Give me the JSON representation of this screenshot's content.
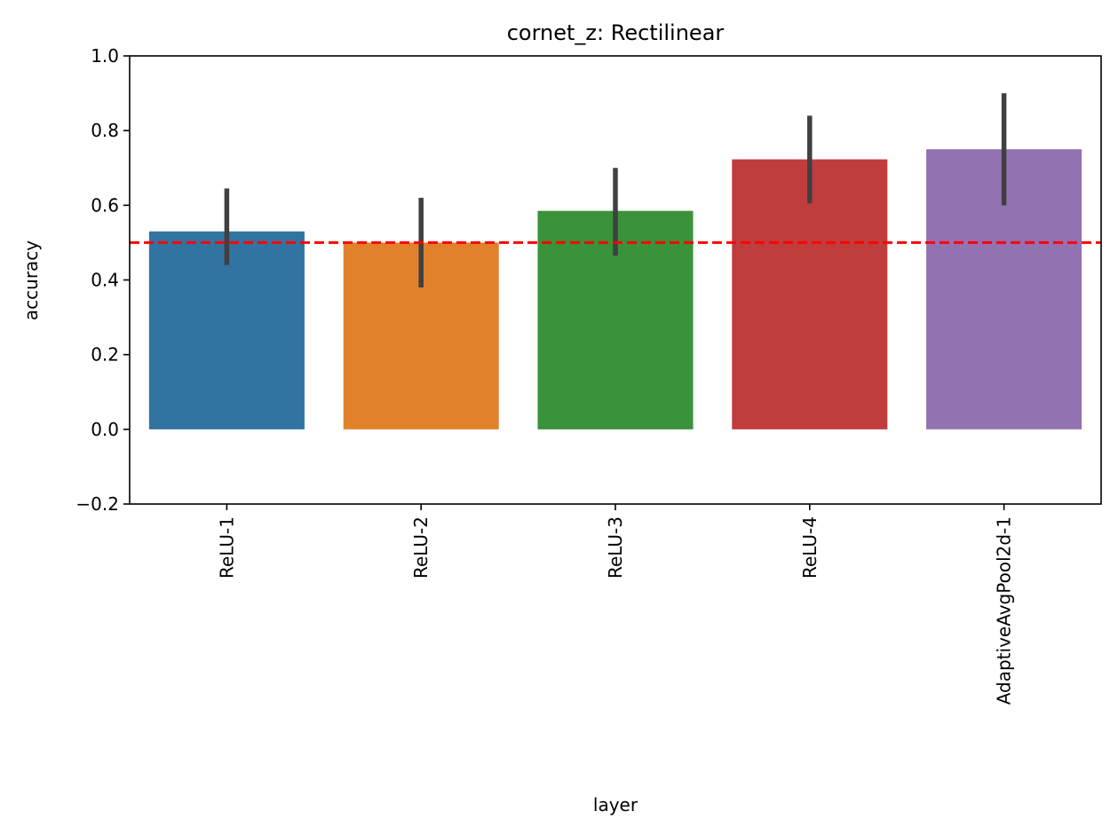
{
  "chart_data": {
    "type": "bar",
    "title": "cornet_z: Rectilinear",
    "xlabel": "layer",
    "ylabel": "accuracy",
    "ylim": [
      -0.2,
      1.0
    ],
    "yticks": [
      -0.2,
      0.0,
      0.2,
      0.4,
      0.6,
      0.8,
      1.0
    ],
    "ytick_labels": [
      "−0.2",
      "0.0",
      "0.2",
      "0.4",
      "0.6",
      "0.8",
      "1.0"
    ],
    "categories": [
      "ReLU-1",
      "ReLU-2",
      "ReLU-3",
      "ReLU-4",
      "AdaptiveAvgPool2d-1"
    ],
    "values": [
      0.53,
      0.5,
      0.585,
      0.723,
      0.75
    ],
    "error_low": [
      0.44,
      0.38,
      0.465,
      0.605,
      0.6
    ],
    "error_high": [
      0.645,
      0.62,
      0.7,
      0.84,
      0.9
    ],
    "colors": [
      "#3274a1",
      "#e1812c",
      "#3a923a",
      "#c03d3e",
      "#9372b2"
    ],
    "error_color": "#404040",
    "reference_line": {
      "y": 0.5,
      "color": "#ff0000",
      "style": "dashed"
    },
    "grid": false
  }
}
